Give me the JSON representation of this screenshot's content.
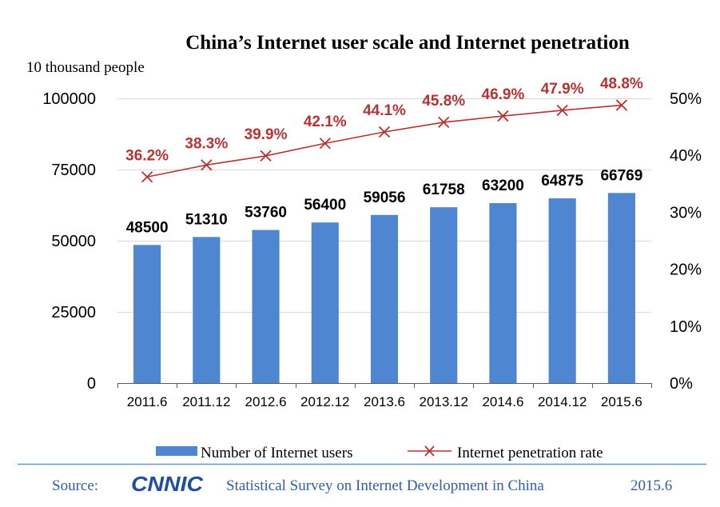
{
  "chart_data": {
    "type": "bar",
    "title": "China’s Internet user scale and Internet penetration",
    "left_axis_unit": "10 thousand people",
    "categories": [
      "2011.6",
      "2011.12",
      "2012.6",
      "2012.12",
      "2013.6",
      "2013.12",
      "2014.6",
      "2014.12",
      "2015.6"
    ],
    "series": [
      {
        "name": "Number of Internet users",
        "type": "bar",
        "axis": "left",
        "values": [
          48500,
          51310,
          53760,
          56400,
          59056,
          61758,
          63200,
          64875,
          66769
        ],
        "color": "#4f86d1"
      },
      {
        "name": "Internet penetration rate",
        "type": "line",
        "axis": "right",
        "values": [
          36.2,
          38.3,
          39.9,
          42.1,
          44.1,
          45.8,
          46.9,
          47.9,
          48.8
        ],
        "color": "#b73232",
        "labels": [
          "36.2%",
          "38.3%",
          "39.9%",
          "42.1%",
          "44.1%",
          "45.8%",
          "46.9%",
          "47.9%",
          "48.8%"
        ]
      }
    ],
    "left_axis": {
      "ylim": [
        0,
        100000
      ],
      "ticks": [
        0,
        25000,
        50000,
        75000,
        100000
      ],
      "tick_labels": [
        "0",
        "25000",
        "50000",
        "75000",
        "100000"
      ]
    },
    "right_axis": {
      "ylim": [
        0,
        50
      ],
      "ticks": [
        0,
        10,
        20,
        30,
        40,
        50
      ],
      "tick_labels": [
        "0%",
        "10%",
        "20%",
        "30%",
        "40%",
        "50%"
      ]
    },
    "grid": true,
    "legend_position": "bottom"
  },
  "source": {
    "label": "Source:",
    "logo_text": "CNNIC",
    "survey": "Statistical Survey on Internet Development in China",
    "date": "2015.6"
  },
  "colors": {
    "bar": "#4f86d1",
    "line": "#b73232",
    "rule": "#5b9bd5",
    "source_text": "#2f5fa8",
    "logo": "#1f4e9c"
  }
}
